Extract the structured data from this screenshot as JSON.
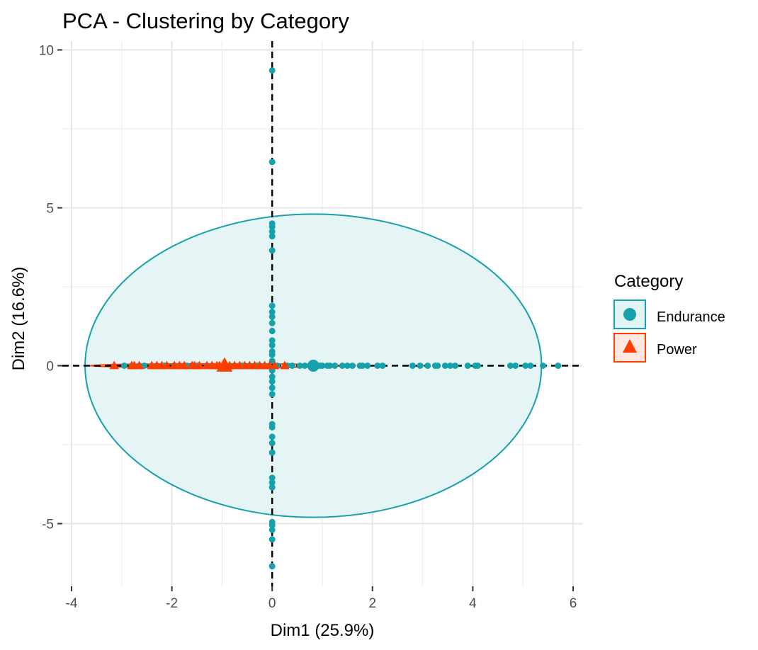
{
  "chart_data": {
    "type": "scatter",
    "title": "PCA - Clustering by Category",
    "xlabel": "Dim1 (25.9%)",
    "ylabel": "Dim2 (16.6%)",
    "xlim": [
      -4,
      6
    ],
    "ylim": [
      -7,
      10
    ],
    "x_ticks": [
      "-4",
      "-2",
      "0",
      "2",
      "4",
      "6"
    ],
    "y_ticks": [
      "-5",
      "0",
      "5",
      "10"
    ],
    "grid": true,
    "reference_lines": {
      "x": 0,
      "y": 0,
      "style": "dashed"
    },
    "legend": {
      "title": "Category",
      "position": "right"
    },
    "series": [
      {
        "name": "Endurance",
        "color": "#17a2ab",
        "marker": "circle",
        "ellipse": {
          "cx": 0.82,
          "cy": 0.0,
          "rx": 4.55,
          "ry": 4.8
        },
        "centroid": [
          0.82,
          0.0
        ],
        "points": [
          [
            0,
            9.35
          ],
          [
            0,
            6.45
          ],
          [
            0,
            4.5
          ],
          [
            0,
            4.4
          ],
          [
            0,
            4.25
          ],
          [
            0,
            4.1
          ],
          [
            0,
            3.65
          ],
          [
            0,
            1.9
          ],
          [
            0,
            1.7
          ],
          [
            0,
            1.55
          ],
          [
            0,
            1.35
          ],
          [
            0,
            1.1
          ],
          [
            0,
            0.8
          ],
          [
            0,
            0.65
          ],
          [
            0,
            0.45
          ],
          [
            0,
            0.35
          ],
          [
            0,
            0.15
          ],
          [
            0,
            -0.15
          ],
          [
            0,
            -0.35
          ],
          [
            0,
            -0.5
          ],
          [
            0,
            -0.7
          ],
          [
            0,
            -0.9
          ],
          [
            0,
            -1.85
          ],
          [
            0,
            -1.95
          ],
          [
            0,
            -2.25
          ],
          [
            0,
            -2.45
          ],
          [
            0,
            -2.75
          ],
          [
            0,
            -3.55
          ],
          [
            0,
            -3.7
          ],
          [
            0,
            -3.85
          ],
          [
            0,
            -4.95
          ],
          [
            0,
            -5.05
          ],
          [
            0,
            -5.2
          ],
          [
            0,
            -5.5
          ],
          [
            0,
            -6.35
          ],
          [
            0.1,
            0
          ],
          [
            0.3,
            0
          ],
          [
            0.4,
            0
          ],
          [
            0.55,
            0
          ],
          [
            0.65,
            0
          ],
          [
            0.75,
            0
          ],
          [
            0.95,
            0
          ],
          [
            1.0,
            0
          ],
          [
            1.1,
            0
          ],
          [
            1.15,
            0
          ],
          [
            1.25,
            0
          ],
          [
            1.4,
            0
          ],
          [
            1.5,
            0
          ],
          [
            1.6,
            0
          ],
          [
            1.75,
            0
          ],
          [
            1.8,
            0
          ],
          [
            1.9,
            0
          ],
          [
            2.1,
            0
          ],
          [
            2.2,
            0
          ],
          [
            2.8,
            0
          ],
          [
            2.95,
            0
          ],
          [
            3.1,
            0
          ],
          [
            3.25,
            0
          ],
          [
            3.3,
            0
          ],
          [
            3.45,
            0
          ],
          [
            3.55,
            0
          ],
          [
            3.65,
            0
          ],
          [
            3.9,
            0
          ],
          [
            4.05,
            0
          ],
          [
            4.1,
            0
          ],
          [
            4.75,
            0
          ],
          [
            4.85,
            0
          ],
          [
            5.05,
            0
          ],
          [
            5.15,
            0
          ],
          [
            5.4,
            0
          ],
          [
            5.7,
            0
          ],
          [
            -0.15,
            0
          ],
          [
            -0.3,
            0
          ],
          [
            -0.45,
            0
          ],
          [
            -0.6,
            0
          ],
          [
            -0.85,
            0
          ],
          [
            -1.05,
            0
          ],
          [
            -1.3,
            0
          ],
          [
            -1.5,
            0
          ],
          [
            -1.7,
            0
          ],
          [
            -1.95,
            0
          ],
          [
            -2.15,
            0
          ],
          [
            -2.4,
            0
          ],
          [
            -2.55,
            0
          ],
          [
            -2.65,
            0
          ],
          [
            -2.8,
            0
          ],
          [
            -2.95,
            0
          ]
        ]
      },
      {
        "name": "Power",
        "color": "#ff3d00",
        "marker": "triangle",
        "ellipse": {
          "cx": -1.1,
          "cy": 0.0,
          "rx": 2.55,
          "ry": 0.06
        },
        "centroid": [
          -0.95,
          0.0
        ],
        "points": [
          [
            -3.15,
            0
          ],
          [
            -2.8,
            0
          ],
          [
            -2.75,
            0
          ],
          [
            -2.65,
            0
          ],
          [
            -2.4,
            0
          ],
          [
            -2.3,
            0
          ],
          [
            -2.2,
            0
          ],
          [
            -2.1,
            0
          ],
          [
            -1.95,
            0
          ],
          [
            -1.85,
            0
          ],
          [
            -1.75,
            0
          ],
          [
            -1.6,
            0
          ],
          [
            -1.55,
            0
          ],
          [
            -1.45,
            0
          ],
          [
            -1.3,
            0
          ],
          [
            -1.2,
            0
          ],
          [
            -1.1,
            0
          ],
          [
            -1.05,
            0
          ],
          [
            -0.95,
            0.08
          ],
          [
            -0.85,
            0
          ],
          [
            -0.75,
            0
          ],
          [
            -0.65,
            0
          ],
          [
            -0.55,
            0
          ],
          [
            -0.45,
            0
          ],
          [
            -0.35,
            0
          ],
          [
            -0.25,
            0
          ],
          [
            -0.15,
            0
          ],
          [
            -0.05,
            0
          ],
          [
            0.05,
            0
          ],
          [
            0.25,
            0
          ]
        ]
      }
    ]
  }
}
